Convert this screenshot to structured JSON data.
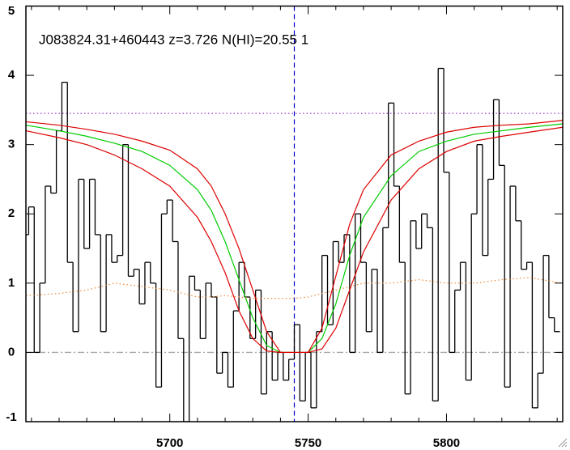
{
  "chart_data": {
    "type": "line",
    "annotation": "J083824.31+460443 z=3.726 N(HI)=20.55 1",
    "xlim": [
      5648,
      5842
    ],
    "ylim": [
      -1,
      5
    ],
    "xticks": [
      5700,
      5750,
      5800
    ],
    "xminor": [
      5650,
      5660,
      5670,
      5680,
      5690,
      5710,
      5720,
      5730,
      5740,
      5760,
      5770,
      5780,
      5790,
      5810,
      5820,
      5830,
      5840
    ],
    "yticks": [
      -1,
      0,
      1,
      2,
      3,
      4,
      5
    ],
    "hlines": [
      {
        "value": 3.45,
        "color": "#9933cc",
        "style": "dotted"
      },
      {
        "value": 0,
        "color": "#aaaaaa",
        "style": "dashdot"
      }
    ],
    "vlines": [
      {
        "value": 5745,
        "color": "#0000cc",
        "style": "dashed"
      }
    ],
    "series": [
      {
        "color": "#000000",
        "drawstyle": "steps",
        "style": "solid",
        "x": [
          5648,
          5650,
          5652,
          5654,
          5656,
          5658,
          5660,
          5662,
          5664,
          5666,
          5668,
          5670,
          5672,
          5674,
          5676,
          5678,
          5680,
          5682,
          5684,
          5686,
          5688,
          5690,
          5692,
          5694,
          5696,
          5698,
          5700,
          5702,
          5704,
          5706,
          5708,
          5710,
          5712,
          5714,
          5716,
          5718,
          5720,
          5722,
          5724,
          5726,
          5728,
          5730,
          5732,
          5734,
          5736,
          5738,
          5740,
          5742,
          5744,
          5746,
          5748,
          5750,
          5752,
          5754,
          5756,
          5758,
          5760,
          5762,
          5764,
          5766,
          5768,
          5770,
          5772,
          5774,
          5776,
          5778,
          5780,
          5782,
          5784,
          5786,
          5788,
          5790,
          5792,
          5794,
          5796,
          5798,
          5800,
          5802,
          5804,
          5806,
          5808,
          5810,
          5812,
          5814,
          5816,
          5818,
          5820,
          5822,
          5824,
          5826,
          5828,
          5830,
          5832,
          5834,
          5836,
          5838,
          5840
        ],
        "values": [
          1.7,
          2.1,
          0.0,
          1.0,
          2.4,
          2.3,
          3.2,
          3.9,
          1.3,
          0.3,
          2.5,
          1.5,
          2.5,
          1.7,
          0.3,
          1.7,
          1.3,
          1.4,
          3.0,
          1.1,
          1.2,
          0.7,
          1.3,
          1.0,
          -0.5,
          2.0,
          2.2,
          1.6,
          0.2,
          -1.0,
          1.1,
          0.9,
          0.2,
          1.0,
          0.8,
          -0.3,
          0.0,
          -0.5,
          0.6,
          1.3,
          0.8,
          0.2,
          0.9,
          -0.6,
          0.3,
          -0.4,
          0.0,
          -0.4,
          -0.1,
          0.4,
          -0.7,
          0.0,
          -0.8,
          0.3,
          1.4,
          0.4,
          1.6,
          1.3,
          1.7,
          0.0,
          2.0,
          1.3,
          0.3,
          1.2,
          0.0,
          1.8,
          3.6,
          2.4,
          1.3,
          -0.6,
          1.9,
          1.5,
          2.0,
          1.8,
          -0.7,
          4.1,
          2.6,
          0.0,
          0.9,
          1.3,
          -0.4,
          2.0,
          3.0,
          1.4,
          2.5,
          3.65,
          2.7,
          -0.5,
          2.4,
          1.9,
          1.2,
          1.3,
          -0.8,
          -0.3,
          1.4,
          0.5,
          0.3
        ]
      },
      {
        "color": "#00cc00",
        "drawstyle": "line",
        "style": "solid",
        "x": [
          5648,
          5660,
          5670,
          5680,
          5690,
          5700,
          5710,
          5715,
          5720,
          5725,
          5730,
          5735,
          5740,
          5745,
          5750,
          5755,
          5760,
          5765,
          5770,
          5780,
          5790,
          5800,
          5810,
          5820,
          5830,
          5842
        ],
        "values": [
          3.28,
          3.2,
          3.12,
          3.02,
          2.9,
          2.7,
          2.35,
          2.05,
          1.6,
          1.05,
          0.5,
          0.1,
          0.0,
          0.0,
          0.0,
          0.2,
          0.7,
          1.4,
          1.95,
          2.55,
          2.9,
          3.05,
          3.15,
          3.2,
          3.25,
          3.3
        ]
      },
      {
        "color": "#dd0000",
        "drawstyle": "line",
        "style": "solid",
        "x": [
          5648,
          5660,
          5670,
          5680,
          5690,
          5700,
          5710,
          5715,
          5720,
          5725,
          5730,
          5735,
          5740,
          5745,
          5750,
          5755,
          5760,
          5765,
          5770,
          5780,
          5790,
          5800,
          5810,
          5820,
          5830,
          5842
        ],
        "values": [
          3.33,
          3.28,
          3.22,
          3.15,
          3.05,
          2.92,
          2.65,
          2.4,
          2.0,
          1.5,
          0.9,
          0.3,
          0.0,
          0.0,
          0.0,
          0.35,
          1.1,
          1.85,
          2.35,
          2.85,
          3.05,
          3.18,
          3.25,
          3.28,
          3.3,
          3.35
        ]
      },
      {
        "color": "#dd0000",
        "drawstyle": "line",
        "style": "solid",
        "x": [
          5648,
          5660,
          5670,
          5680,
          5690,
          5700,
          5710,
          5715,
          5720,
          5725,
          5730,
          5735,
          5740,
          5745,
          5750,
          5755,
          5760,
          5765,
          5770,
          5780,
          5790,
          5800,
          5810,
          5820,
          5830,
          5842
        ],
        "values": [
          3.2,
          3.1,
          3.0,
          2.85,
          2.65,
          2.4,
          1.95,
          1.6,
          1.15,
          0.6,
          0.2,
          0.02,
          0.0,
          0.0,
          0.0,
          0.05,
          0.35,
          0.9,
          1.45,
          2.2,
          2.65,
          2.9,
          3.05,
          3.12,
          3.18,
          3.25
        ]
      },
      {
        "color": "#ee8833",
        "drawstyle": "line",
        "style": "dotted",
        "x": [
          5648,
          5660,
          5670,
          5680,
          5690,
          5700,
          5710,
          5715,
          5720,
          5725,
          5730,
          5735,
          5740,
          5745,
          5750,
          5755,
          5760,
          5765,
          5770,
          5780,
          5790,
          5800,
          5810,
          5820,
          5830,
          5842
        ],
        "values": [
          0.82,
          0.85,
          0.9,
          1.0,
          0.95,
          0.9,
          0.8,
          0.8,
          0.82,
          0.8,
          0.78,
          0.78,
          0.78,
          0.78,
          0.8,
          0.85,
          0.9,
          0.95,
          1.0,
          1.0,
          1.05,
          1.0,
          1.0,
          1.05,
          1.08,
          1.0
        ]
      }
    ]
  }
}
